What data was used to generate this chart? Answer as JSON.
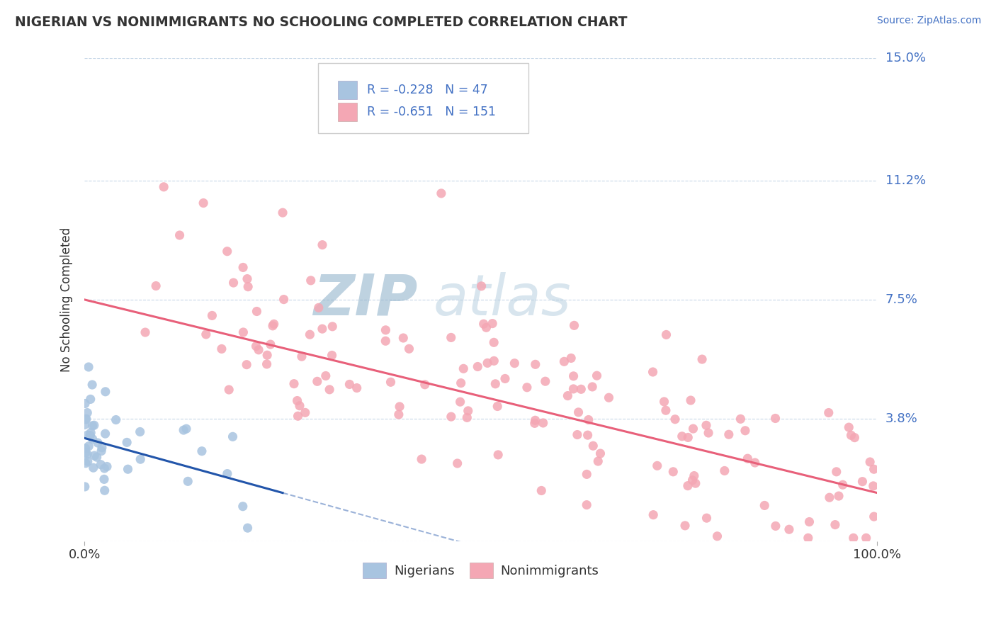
{
  "title": "NIGERIAN VS NONIMMIGRANTS NO SCHOOLING COMPLETED CORRELATION CHART",
  "source": "Source: ZipAtlas.com",
  "ylabel": "No Schooling Completed",
  "xlim": [
    0,
    100
  ],
  "ylim": [
    0,
    15.0
  ],
  "yticks": [
    0,
    3.8,
    7.5,
    11.2,
    15.0
  ],
  "xticklabels": [
    "0.0%",
    "100.0%"
  ],
  "yticklabels": [
    "",
    "3.8%",
    "7.5%",
    "11.2%",
    "15.0%"
  ],
  "nigerian_R": -0.228,
  "nigerian_N": 47,
  "nonimmigrant_R": -0.651,
  "nonimmigrant_N": 151,
  "nigerian_color": "#a8c4e0",
  "nonimmigrant_color": "#f4a7b4",
  "nigerian_line_color": "#2255aa",
  "nonimmigrant_line_color": "#e8607a",
  "legend_label_nigerian": "Nigerians",
  "legend_label_nonimmigrant": "Nonimmigrants",
  "watermark_zip": "ZIP",
  "watermark_atlas": "atlas",
  "background_color": "#ffffff",
  "grid_color": "#c8d8e8",
  "axis_color": "#4472c4",
  "text_color": "#333333",
  "nig_line_x0": 0,
  "nig_line_y0": 3.2,
  "nig_line_x1": 25,
  "nig_line_y1": 1.5,
  "nonim_line_x0": 0,
  "nonim_line_y0": 7.5,
  "nonim_line_x1": 100,
  "nonim_line_y1": 1.5
}
